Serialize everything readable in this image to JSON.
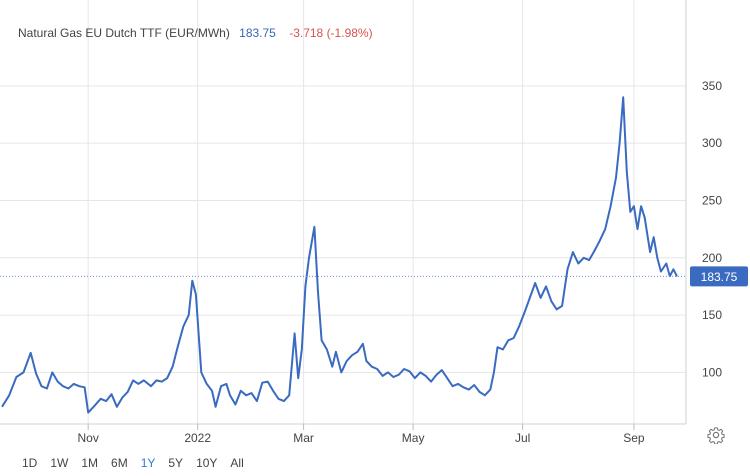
{
  "header": {
    "name": "Natural Gas EU Dutch TTF (EUR/MWh)",
    "last": "183.75",
    "change": "-3.718 (-1.98%)"
  },
  "colors": {
    "line": "#3a6bc1",
    "badge": "#3a6bc1",
    "change_negative": "#d9534f",
    "active_range": "#2e7bd4"
  },
  "icons": {
    "settings": "gear-icon"
  },
  "ranges": [
    {
      "label": "1D",
      "active": false
    },
    {
      "label": "1W",
      "active": false
    },
    {
      "label": "1M",
      "active": false
    },
    {
      "label": "6M",
      "active": false
    },
    {
      "label": "1Y",
      "active": true
    },
    {
      "label": "5Y",
      "active": false
    },
    {
      "label": "10Y",
      "active": false
    },
    {
      "label": "All",
      "active": false
    }
  ],
  "chart_data": {
    "type": "line",
    "title": "",
    "xlabel": "",
    "ylabel": "",
    "x_ticks": [
      {
        "label": "Nov",
        "x": "2021-11-01"
      },
      {
        "label": "2022",
        "x": "2022-01-01"
      },
      {
        "label": "Mar",
        "x": "2022-03-01"
      },
      {
        "label": "May",
        "x": "2022-05-01"
      },
      {
        "label": "Jul",
        "x": "2022-07-01"
      },
      {
        "label": "Sep",
        "x": "2022-09-01"
      }
    ],
    "y_ticks": [
      100,
      150,
      200,
      250,
      300,
      350
    ],
    "ylim": [
      55,
      390
    ],
    "xlim": [
      "2021-09-14",
      "2022-09-30"
    ],
    "grid": true,
    "last_value": 183.75,
    "last_label": "183.75",
    "series": [
      {
        "values": [
          [
            "2021-09-14",
            70
          ],
          [
            "2021-09-18",
            80
          ],
          [
            "2021-09-22",
            96
          ],
          [
            "2021-09-26",
            100
          ],
          [
            "2021-09-30",
            117
          ],
          [
            "2021-10-03",
            99
          ],
          [
            "2021-10-06",
            88
          ],
          [
            "2021-10-09",
            86
          ],
          [
            "2021-10-12",
            100
          ],
          [
            "2021-10-15",
            92
          ],
          [
            "2021-10-18",
            88
          ],
          [
            "2021-10-21",
            86
          ],
          [
            "2021-10-24",
            90
          ],
          [
            "2021-10-27",
            88
          ],
          [
            "2021-10-30",
            87
          ],
          [
            "2021-11-01",
            65
          ],
          [
            "2021-11-04",
            70
          ],
          [
            "2021-11-08",
            77
          ],
          [
            "2021-11-11",
            75
          ],
          [
            "2021-11-14",
            81
          ],
          [
            "2021-11-17",
            70
          ],
          [
            "2021-11-20",
            78
          ],
          [
            "2021-11-23",
            83
          ],
          [
            "2021-11-26",
            93
          ],
          [
            "2021-11-29",
            90
          ],
          [
            "2021-12-02",
            93
          ],
          [
            "2021-12-06",
            88
          ],
          [
            "2021-12-09",
            93
          ],
          [
            "2021-12-12",
            92
          ],
          [
            "2021-12-15",
            95
          ],
          [
            "2021-12-18",
            105
          ],
          [
            "2021-12-21",
            123
          ],
          [
            "2021-12-24",
            140
          ],
          [
            "2021-12-27",
            150
          ],
          [
            "2021-12-29",
            180
          ],
          [
            "2021-12-31",
            168
          ],
          [
            "2022-01-03",
            100
          ],
          [
            "2022-01-06",
            90
          ],
          [
            "2022-01-09",
            84
          ],
          [
            "2022-01-11",
            70
          ],
          [
            "2022-01-14",
            88
          ],
          [
            "2022-01-17",
            90
          ],
          [
            "2022-01-19",
            80
          ],
          [
            "2022-01-22",
            72
          ],
          [
            "2022-01-25",
            84
          ],
          [
            "2022-01-28",
            80
          ],
          [
            "2022-01-31",
            82
          ],
          [
            "2022-02-03",
            75
          ],
          [
            "2022-02-06",
            91
          ],
          [
            "2022-02-09",
            92
          ],
          [
            "2022-02-12",
            84
          ],
          [
            "2022-02-15",
            77
          ],
          [
            "2022-02-18",
            75
          ],
          [
            "2022-02-21",
            80
          ],
          [
            "2022-02-24",
            134
          ],
          [
            "2022-02-26",
            95
          ],
          [
            "2022-02-28",
            120
          ],
          [
            "2022-03-02",
            175
          ],
          [
            "2022-03-04",
            200
          ],
          [
            "2022-03-07",
            227
          ],
          [
            "2022-03-09",
            170
          ],
          [
            "2022-03-11",
            128
          ],
          [
            "2022-03-14",
            120
          ],
          [
            "2022-03-17",
            105
          ],
          [
            "2022-03-19",
            118
          ],
          [
            "2022-03-22",
            100
          ],
          [
            "2022-03-25",
            110
          ],
          [
            "2022-03-28",
            115
          ],
          [
            "2022-03-31",
            118
          ],
          [
            "2022-04-03",
            125
          ],
          [
            "2022-04-05",
            110
          ],
          [
            "2022-04-08",
            105
          ],
          [
            "2022-04-11",
            103
          ],
          [
            "2022-04-14",
            97
          ],
          [
            "2022-04-17",
            100
          ],
          [
            "2022-04-20",
            96
          ],
          [
            "2022-04-23",
            98
          ],
          [
            "2022-04-26",
            103
          ],
          [
            "2022-04-29",
            101
          ],
          [
            "2022-05-02",
            95
          ],
          [
            "2022-05-05",
            100
          ],
          [
            "2022-05-08",
            97
          ],
          [
            "2022-05-11",
            92
          ],
          [
            "2022-05-14",
            98
          ],
          [
            "2022-05-17",
            102
          ],
          [
            "2022-05-20",
            95
          ],
          [
            "2022-05-23",
            88
          ],
          [
            "2022-05-26",
            90
          ],
          [
            "2022-05-29",
            87
          ],
          [
            "2022-06-01",
            85
          ],
          [
            "2022-06-04",
            89
          ],
          [
            "2022-06-07",
            83
          ],
          [
            "2022-06-10",
            80
          ],
          [
            "2022-06-13",
            85
          ],
          [
            "2022-06-15",
            100
          ],
          [
            "2022-06-17",
            122
          ],
          [
            "2022-06-20",
            120
          ],
          [
            "2022-06-23",
            128
          ],
          [
            "2022-06-26",
            130
          ],
          [
            "2022-06-29",
            140
          ],
          [
            "2022-07-02",
            152
          ],
          [
            "2022-07-05",
            165
          ],
          [
            "2022-07-08",
            178
          ],
          [
            "2022-07-11",
            165
          ],
          [
            "2022-07-14",
            175
          ],
          [
            "2022-07-17",
            162
          ],
          [
            "2022-07-20",
            155
          ],
          [
            "2022-07-23",
            158
          ],
          [
            "2022-07-26",
            190
          ],
          [
            "2022-07-29",
            205
          ],
          [
            "2022-08-01",
            195
          ],
          [
            "2022-08-04",
            200
          ],
          [
            "2022-08-07",
            198
          ],
          [
            "2022-08-10",
            206
          ],
          [
            "2022-08-13",
            215
          ],
          [
            "2022-08-16",
            225
          ],
          [
            "2022-08-19",
            245
          ],
          [
            "2022-08-22",
            270
          ],
          [
            "2022-08-24",
            300
          ],
          [
            "2022-08-26",
            340
          ],
          [
            "2022-08-28",
            275
          ],
          [
            "2022-08-30",
            240
          ],
          [
            "2022-09-01",
            245
          ],
          [
            "2022-09-03",
            225
          ],
          [
            "2022-09-05",
            245
          ],
          [
            "2022-09-07",
            235
          ],
          [
            "2022-09-10",
            205
          ],
          [
            "2022-09-12",
            218
          ],
          [
            "2022-09-14",
            200
          ],
          [
            "2022-09-16",
            188
          ],
          [
            "2022-09-19",
            195
          ],
          [
            "2022-09-21",
            184
          ],
          [
            "2022-09-23",
            190
          ],
          [
            "2022-09-25",
            183.75
          ]
        ]
      }
    ]
  }
}
